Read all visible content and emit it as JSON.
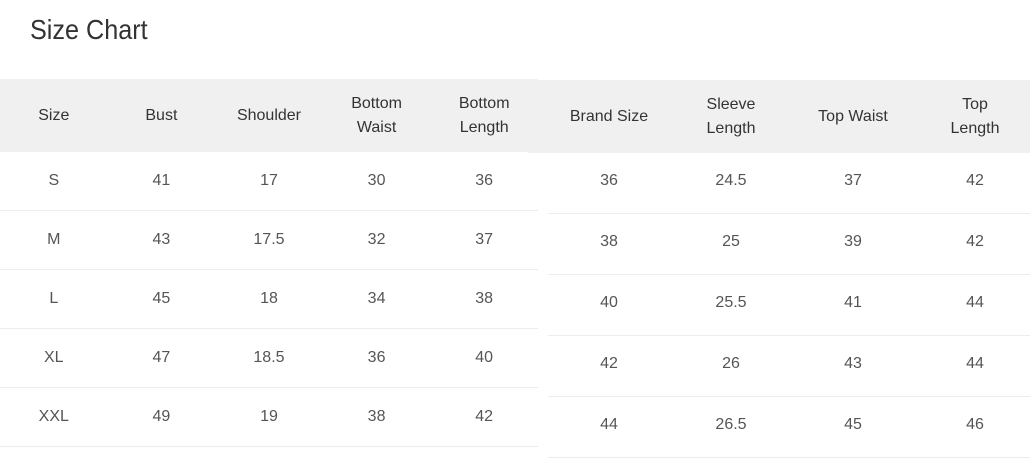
{
  "title": "Size Chart",
  "left_table": {
    "headers": [
      "Size",
      "Bust",
      "Shoulder",
      "Bottom Waist",
      "Bottom Length"
    ],
    "rows": [
      [
        "S",
        "41",
        "17",
        "30",
        "36"
      ],
      [
        "M",
        "43",
        "17.5",
        "32",
        "37"
      ],
      [
        "L",
        "45",
        "18",
        "34",
        "38"
      ],
      [
        "XL",
        "47",
        "18.5",
        "36",
        "40"
      ],
      [
        "XXL",
        "49",
        "19",
        "38",
        "42"
      ]
    ]
  },
  "right_table": {
    "headers": [
      "Brand Size",
      "Sleeve Length",
      "Top Waist",
      "Top Length"
    ],
    "rows": [
      [
        "36",
        "24.5",
        "37",
        "42"
      ],
      [
        "38",
        "25",
        "39",
        "42"
      ],
      [
        "40",
        "25.5",
        "41",
        "44"
      ],
      [
        "42",
        "26",
        "43",
        "44"
      ],
      [
        "44",
        "26.5",
        "45",
        "46"
      ]
    ]
  }
}
